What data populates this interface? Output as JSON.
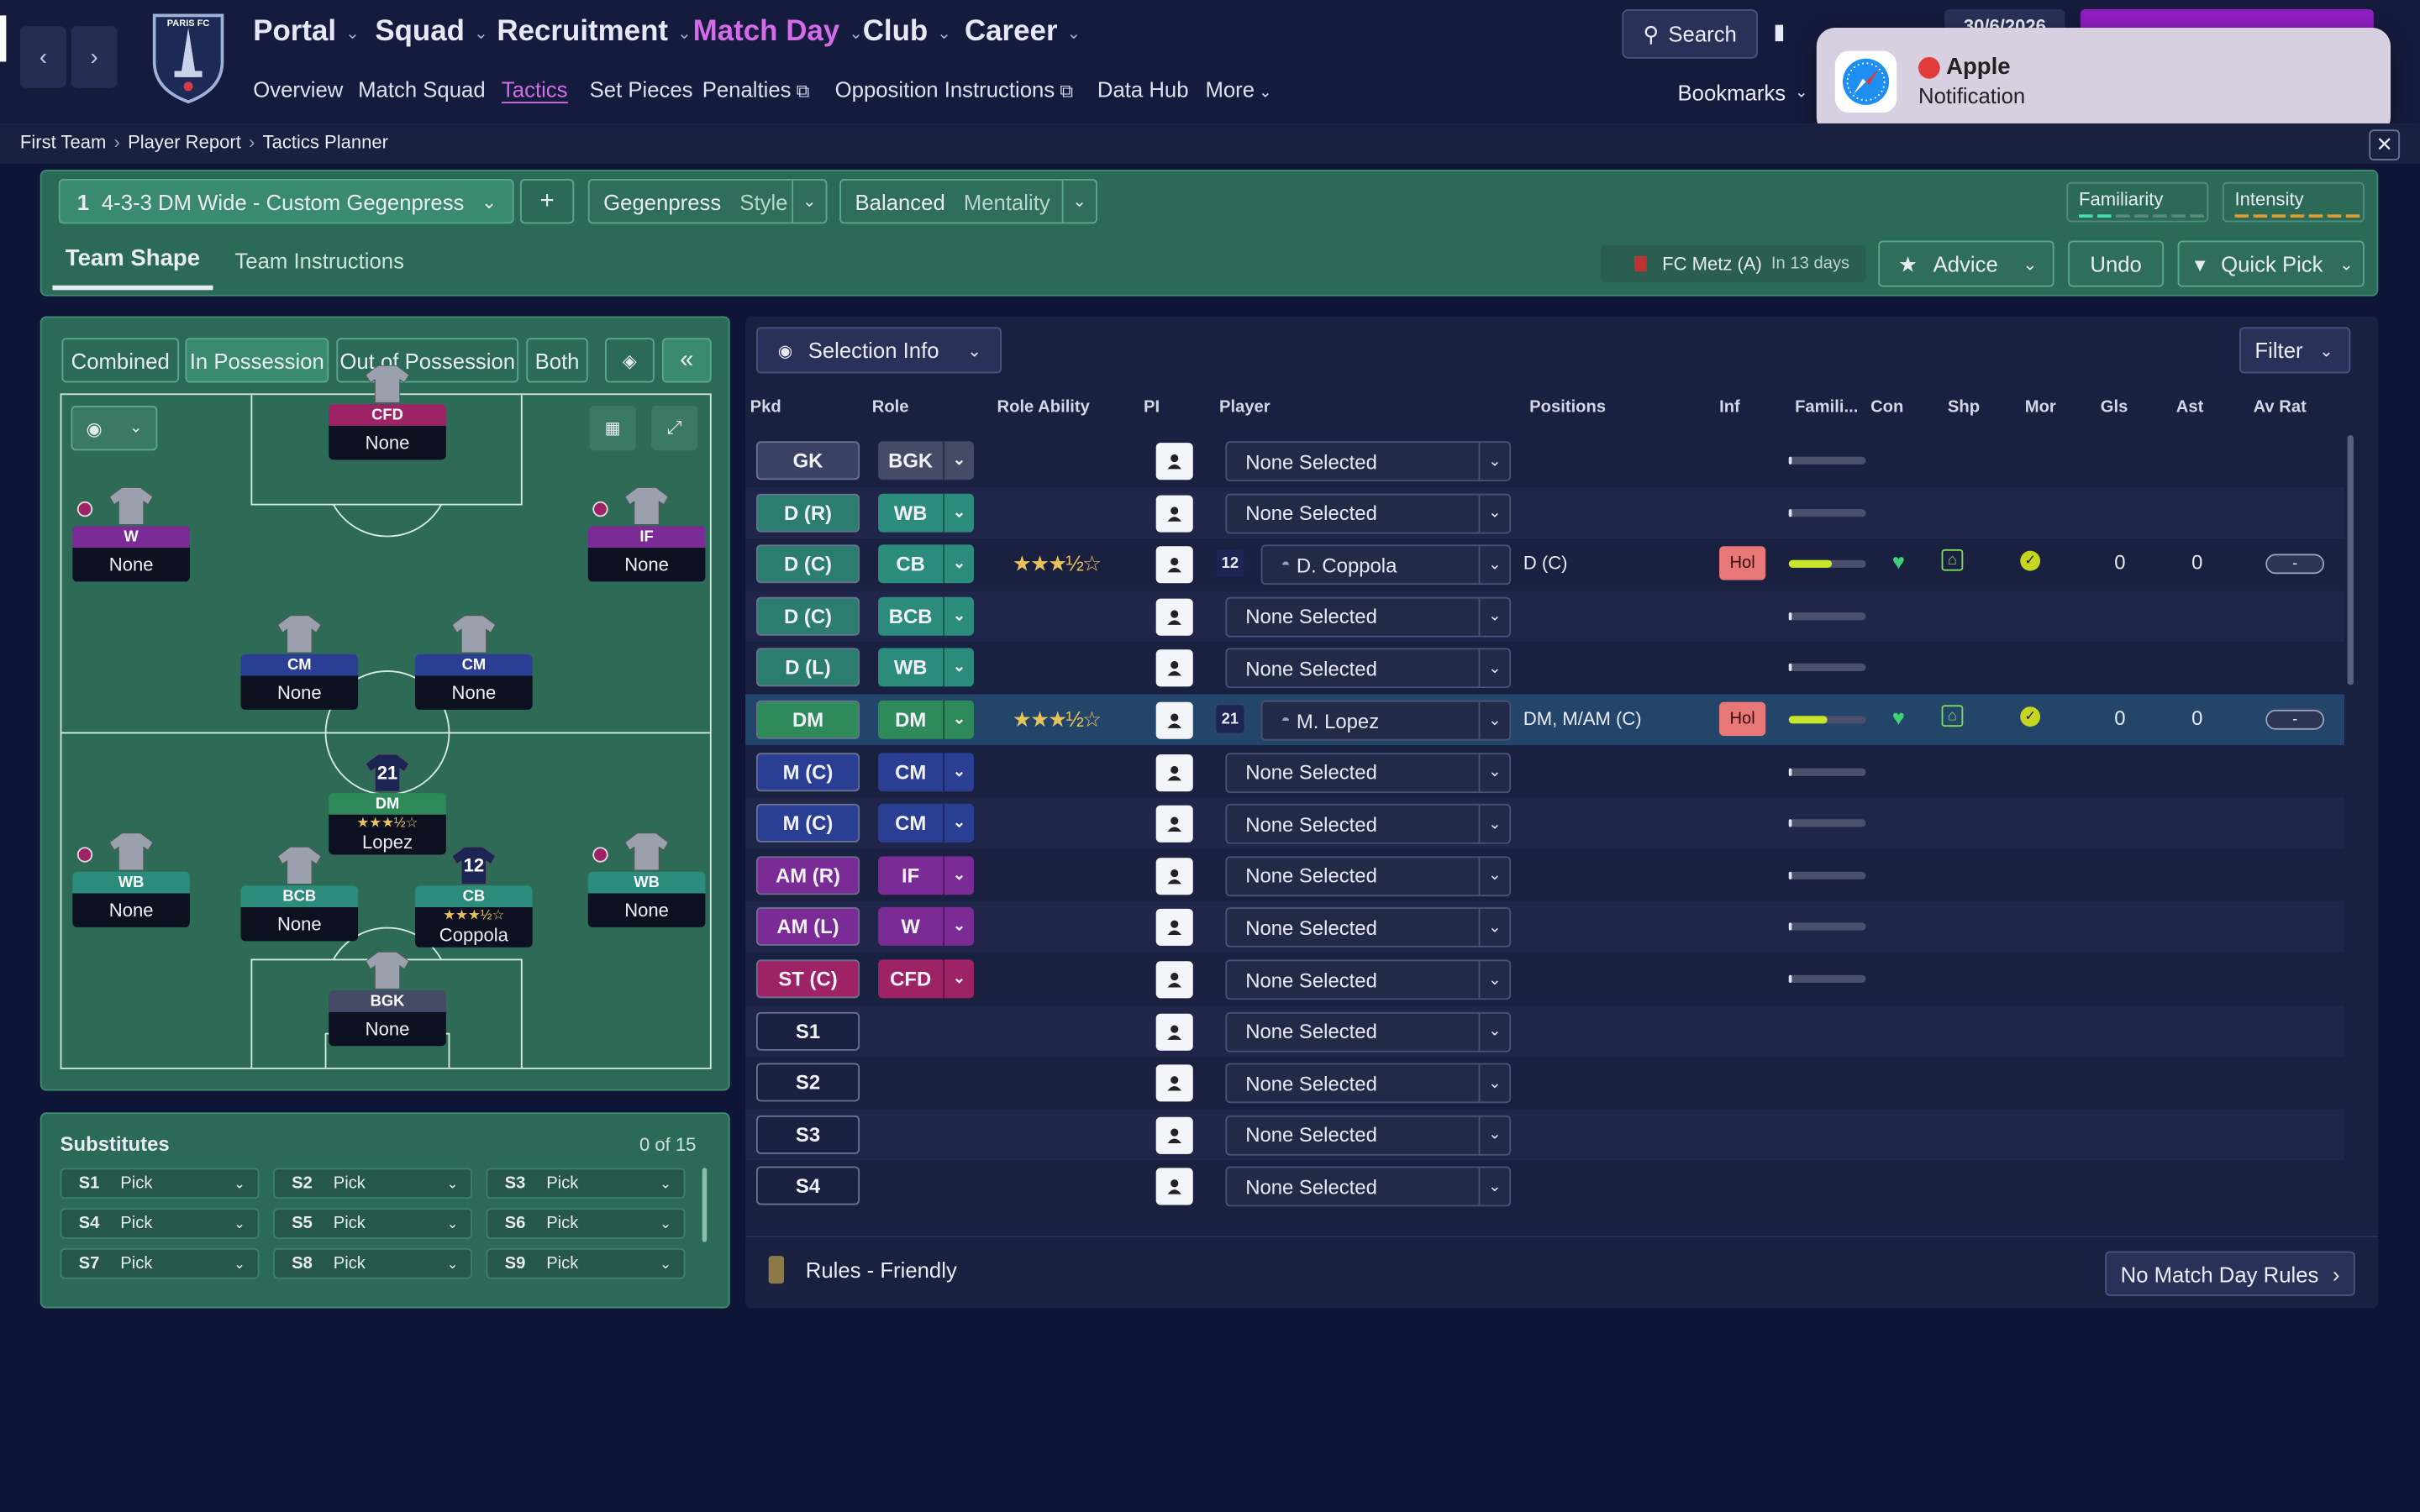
{
  "header": {
    "club_name": "PARIS FC",
    "nav": [
      "Portal",
      "Squad",
      "Recruitment",
      "Match Day",
      "Club",
      "Career"
    ],
    "subnav": [
      "Overview",
      "Match Squad",
      "Tactics",
      "Set Pieces",
      "Penalties",
      "Opposition Instructions",
      "Data Hub",
      "More"
    ],
    "search_label": "Search",
    "date": "30/6/2026",
    "bookmarks_label": "Bookmarks",
    "notification": {
      "title": "Apple",
      "subtitle": "Notification"
    }
  },
  "breadcrumb": [
    "First Team",
    "Player Report",
    "Tactics Planner"
  ],
  "tactic_bar": {
    "slot": "1",
    "tactic_name": "4-3-3 DM Wide - Custom Gegenpress",
    "add": "+",
    "style_value": "Gegenpress",
    "style_label": "Style",
    "mentality_value": "Balanced",
    "mentality_label": "Mentality",
    "familiarity_label": "Familiarity",
    "intensity_label": "Intensity"
  },
  "tabs": [
    "Team Shape",
    "Team Instructions"
  ],
  "actions": {
    "fixture": "FC Metz (A)",
    "fixture_when": "In 13 days",
    "advice": "Advice",
    "undo": "Undo",
    "quick_pick": "Quick Pick"
  },
  "pitch_tabs": [
    "Combined",
    "In Possession",
    "Out of Possession",
    "Both"
  ],
  "pitch_players": [
    {
      "label": "CFD",
      "name": "None",
      "color": "#9e2366"
    },
    {
      "label": "W",
      "name": "None",
      "color": "#7b2b95"
    },
    {
      "label": "IF",
      "name": "None",
      "color": "#7b2b95"
    },
    {
      "label": "CM",
      "name": "None",
      "color": "#2a3f94"
    },
    {
      "label": "CM",
      "name": "None",
      "color": "#2a3f94"
    },
    {
      "label": "DM",
      "name": "Lopez",
      "color": "#2f8a5a",
      "stars": "★★★½☆",
      "number": "21"
    },
    {
      "label": "WB",
      "name": "None",
      "color": "#2b8b7c"
    },
    {
      "label": "BCB",
      "name": "None",
      "color": "#2b8b7c"
    },
    {
      "label": "CB",
      "name": "Coppola",
      "color": "#2b8b7c",
      "stars": "★★★½☆",
      "number": "12"
    },
    {
      "label": "WB",
      "name": "None",
      "color": "#2b8b7c"
    },
    {
      "label": "BGK",
      "name": "None",
      "color": "#454a66"
    }
  ],
  "substitutes": {
    "title": "Substitutes",
    "count": "0 of 15",
    "slots": [
      {
        "id": "S1",
        "v": "Pick"
      },
      {
        "id": "S2",
        "v": "Pick"
      },
      {
        "id": "S3",
        "v": "Pick"
      },
      {
        "id": "S4",
        "v": "Pick"
      },
      {
        "id": "S5",
        "v": "Pick"
      },
      {
        "id": "S6",
        "v": "Pick"
      },
      {
        "id": "S7",
        "v": "Pick"
      },
      {
        "id": "S8",
        "v": "Pick"
      },
      {
        "id": "S9",
        "v": "Pick"
      }
    ]
  },
  "selection": {
    "dropdown": "Selection Info",
    "filter": "Filter",
    "columns": [
      "Pkd",
      "Role",
      "Role Ability",
      "PI",
      "Player",
      "Positions",
      "Inf",
      "Famili...",
      "Con",
      "Shp",
      "Mor",
      "Gls",
      "Ast",
      "Av Rat"
    ],
    "rows": [
      {
        "pkd": "GK",
        "pkd_color": "#3b4162",
        "role": "BGK",
        "role_color": "#454a66",
        "player": "None Selected",
        "fam": 0.04
      },
      {
        "pkd": "D (R)",
        "pkd_color": "#2b7d6f",
        "role": "WB",
        "role_color": "#2b8b7c",
        "player": "None Selected",
        "fam": 0.04
      },
      {
        "pkd": "D (C)",
        "pkd_color": "#2b7d6f",
        "role": "CB",
        "role_color": "#2b8b7c",
        "player": "D. Coppola",
        "number": "12",
        "stars": "★★★½☆",
        "positions": "D (C)",
        "inf": "Hol",
        "fam": 0.55,
        "gls": "0",
        "ast": "0",
        "rat": "-"
      },
      {
        "pkd": "D (C)",
        "pkd_color": "#2b7d6f",
        "role": "BCB",
        "role_color": "#2b8b7c",
        "player": "None Selected",
        "fam": 0.04
      },
      {
        "pkd": "D (L)",
        "pkd_color": "#2b7d6f",
        "role": "WB",
        "role_color": "#2b8b7c",
        "player": "None Selected",
        "fam": 0.04
      },
      {
        "pkd": "DM",
        "pkd_color": "#2f8a5a",
        "role": "DM",
        "role_color": "#2f8a5a",
        "player": "M. Lopez",
        "number": "21",
        "stars": "★★★½☆",
        "positions": "DM, M/AM (C)",
        "inf": "Hol",
        "fam": 0.5,
        "gls": "0",
        "ast": "0",
        "rat": "-"
      },
      {
        "pkd": "M (C)",
        "pkd_color": "#2a3f94",
        "role": "CM",
        "role_color": "#2a3f94",
        "player": "None Selected",
        "fam": 0.04
      },
      {
        "pkd": "M (C)",
        "pkd_color": "#2a3f94",
        "role": "CM",
        "role_color": "#2a3f94",
        "player": "None Selected",
        "fam": 0.04
      },
      {
        "pkd": "AM (R)",
        "pkd_color": "#7b2b95",
        "role": "IF",
        "role_color": "#7b2b95",
        "player": "None Selected",
        "fam": 0.04
      },
      {
        "pkd": "AM (L)",
        "pkd_color": "#7b2b95",
        "role": "W",
        "role_color": "#7b2b95",
        "player": "None Selected",
        "fam": 0.04
      },
      {
        "pkd": "ST (C)",
        "pkd_color": "#9e2366",
        "role": "CFD",
        "role_color": "#9e2366",
        "player": "None Selected",
        "fam": 0.04
      },
      {
        "pkd": "S1",
        "pkd_color": "#1a2040",
        "player": "None Selected"
      },
      {
        "pkd": "S2",
        "pkd_color": "#1a2040",
        "player": "None Selected"
      },
      {
        "pkd": "S3",
        "pkd_color": "#1a2040",
        "player": "None Selected"
      },
      {
        "pkd": "S4",
        "pkd_color": "#1a2040",
        "player": "None Selected"
      }
    ]
  },
  "footer": {
    "rules": "Rules - Friendly",
    "match_day_rules": "No Match Day Rules"
  }
}
